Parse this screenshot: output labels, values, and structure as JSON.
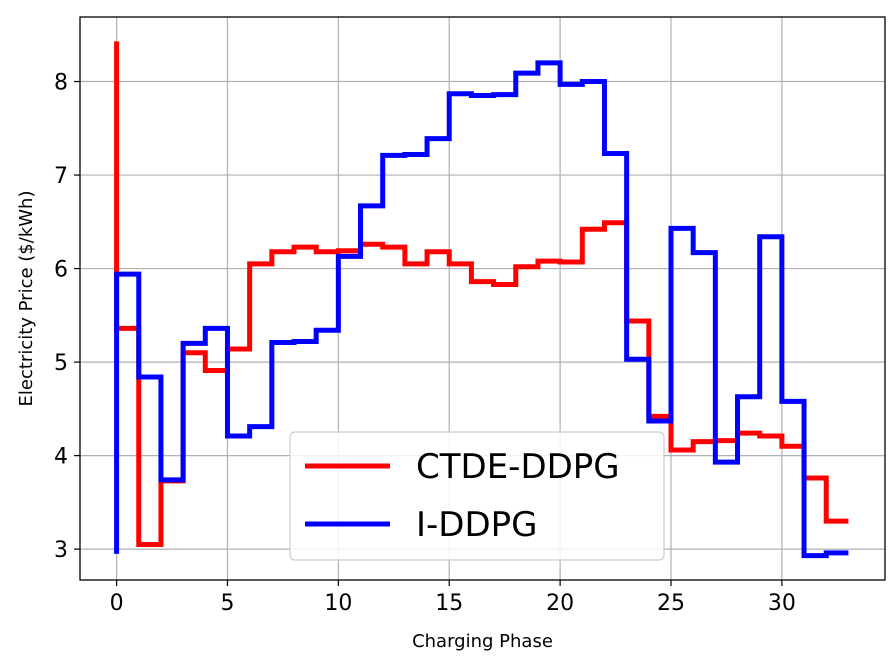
{
  "chart_data": {
    "type": "line",
    "step": "post",
    "title": "",
    "xlabel": "Charging Phase",
    "ylabel": "Electricity Price ($/kWh)",
    "xlim": [
      -1.65,
      34.65
    ],
    "ylim": [
      2.67,
      8.69
    ],
    "xticks": [
      0,
      5,
      10,
      15,
      20,
      25,
      30
    ],
    "yticks": [
      3,
      4,
      5,
      6,
      7,
      8
    ],
    "grid": true,
    "legend_position": "lower-center",
    "x": [
      0,
      1,
      2,
      3,
      4,
      5,
      6,
      7,
      8,
      9,
      10,
      11,
      12,
      13,
      14,
      15,
      16,
      17,
      18,
      19,
      20,
      21,
      22,
      23,
      24,
      25,
      26,
      27,
      28,
      29,
      30,
      31,
      32,
      33
    ],
    "series": [
      {
        "name": "CTDE-DDPG",
        "color": "#ff0000",
        "initial_value": 8.43,
        "values": [
          5.36,
          3.05,
          3.73,
          5.1,
          4.91,
          5.14,
          6.05,
          6.18,
          6.23,
          6.18,
          6.19,
          6.26,
          6.23,
          6.05,
          6.18,
          6.05,
          5.86,
          5.83,
          6.02,
          6.08,
          6.07,
          6.42,
          6.49,
          5.44,
          4.42,
          4.06,
          4.15,
          4.16,
          4.24,
          4.21,
          4.1,
          3.76,
          3.3,
          3.3
        ]
      },
      {
        "name": "I-DDPG",
        "color": "#0000ff",
        "initial_value": 2.95,
        "values": [
          5.94,
          4.84,
          3.74,
          5.2,
          5.36,
          4.21,
          4.31,
          5.21,
          5.22,
          5.34,
          6.13,
          6.67,
          7.21,
          7.22,
          7.39,
          7.87,
          7.85,
          7.86,
          8.09,
          8.2,
          7.97,
          8.0,
          7.23,
          5.03,
          4.37,
          6.43,
          6.17,
          3.93,
          4.63,
          6.34,
          4.58,
          2.93,
          2.96,
          2.96
        ]
      }
    ]
  }
}
